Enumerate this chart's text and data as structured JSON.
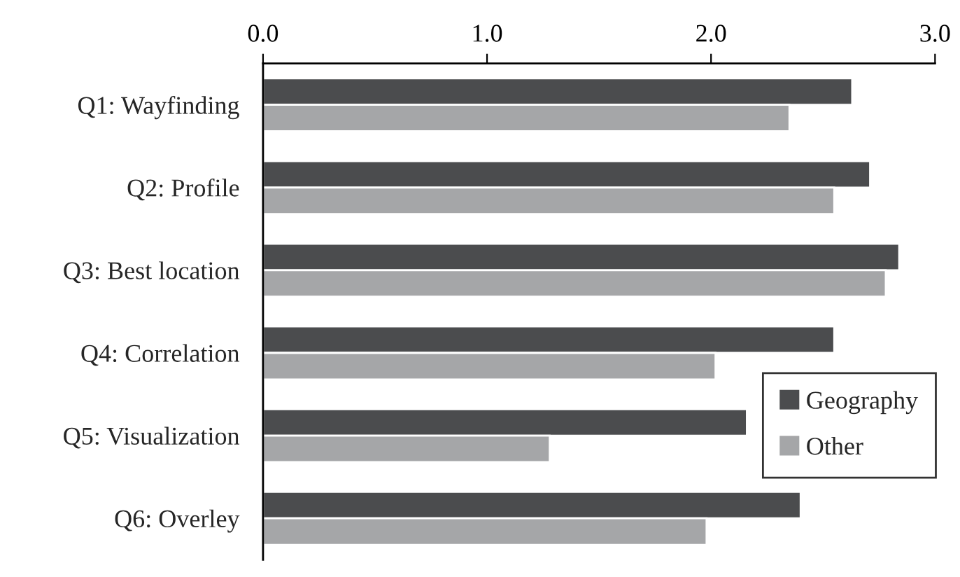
{
  "chart_data": {
    "type": "bar",
    "orientation": "horizontal",
    "categories": [
      "Q1: Wayfinding",
      "Q2: Profile",
      "Q3: Best location",
      "Q4: Correlation",
      "Q5: Visualization",
      "Q6: Overley"
    ],
    "series": [
      {
        "name": "Geography",
        "color": "#4b4c4e",
        "values": [
          2.63,
          2.71,
          2.84,
          2.55,
          2.16,
          2.4
        ]
      },
      {
        "name": "Other",
        "color": "#a5a6a8",
        "values": [
          2.35,
          2.55,
          2.78,
          2.02,
          1.28,
          1.98
        ]
      }
    ],
    "xlim": [
      0,
      3
    ],
    "xticks": [
      {
        "value": 0,
        "label": "0.0"
      },
      {
        "value": 1,
        "label": "1.0"
      },
      {
        "value": 2,
        "label": "2.0"
      },
      {
        "value": 3,
        "label": "3.0"
      }
    ],
    "legend": "bottom right",
    "grid": false
  }
}
